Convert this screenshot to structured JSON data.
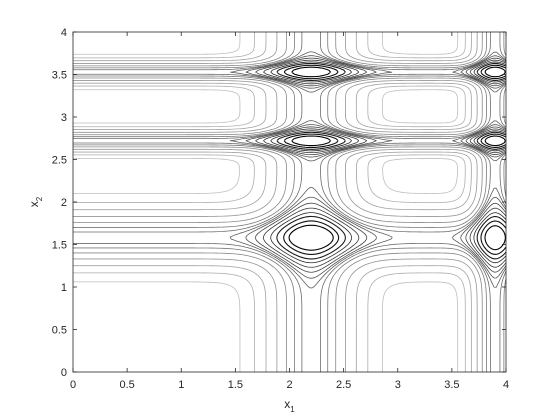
{
  "chart_data": {
    "type": "contour",
    "title": "",
    "xlabel_base": "x",
    "xlabel_sub": "1",
    "ylabel_base": "x",
    "ylabel_sub": "2",
    "xlim": [
      0,
      4
    ],
    "ylim": [
      0,
      4
    ],
    "xticks": [
      0,
      0.5,
      1,
      1.5,
      2,
      2.5,
      3,
      3.5,
      4
    ],
    "xtick_labels": [
      "0",
      "0.5",
      "1",
      "1.5",
      "2",
      "2.5",
      "3",
      "3.5",
      "4"
    ],
    "yticks": [
      0,
      0.5,
      1,
      1.5,
      2,
      2.5,
      3,
      3.5,
      4
    ],
    "ytick_labels": [
      "0",
      "0.5",
      "1",
      "1.5",
      "2",
      "2.5",
      "3",
      "3.5",
      "4"
    ],
    "grid": false,
    "line_color": "#000000",
    "vertical_bands": [
      {
        "center": 2.2,
        "width": 0.38
      },
      {
        "center": 3.9,
        "width": 0.2
      }
    ],
    "horizontal_bands": [
      {
        "center": 1.58,
        "width": 0.3
      },
      {
        "center": 2.72,
        "width": 0.12
      },
      {
        "center": 3.53,
        "width": 0.12
      }
    ],
    "minimum": {
      "x": 2.2,
      "y": 1.58
    }
  }
}
